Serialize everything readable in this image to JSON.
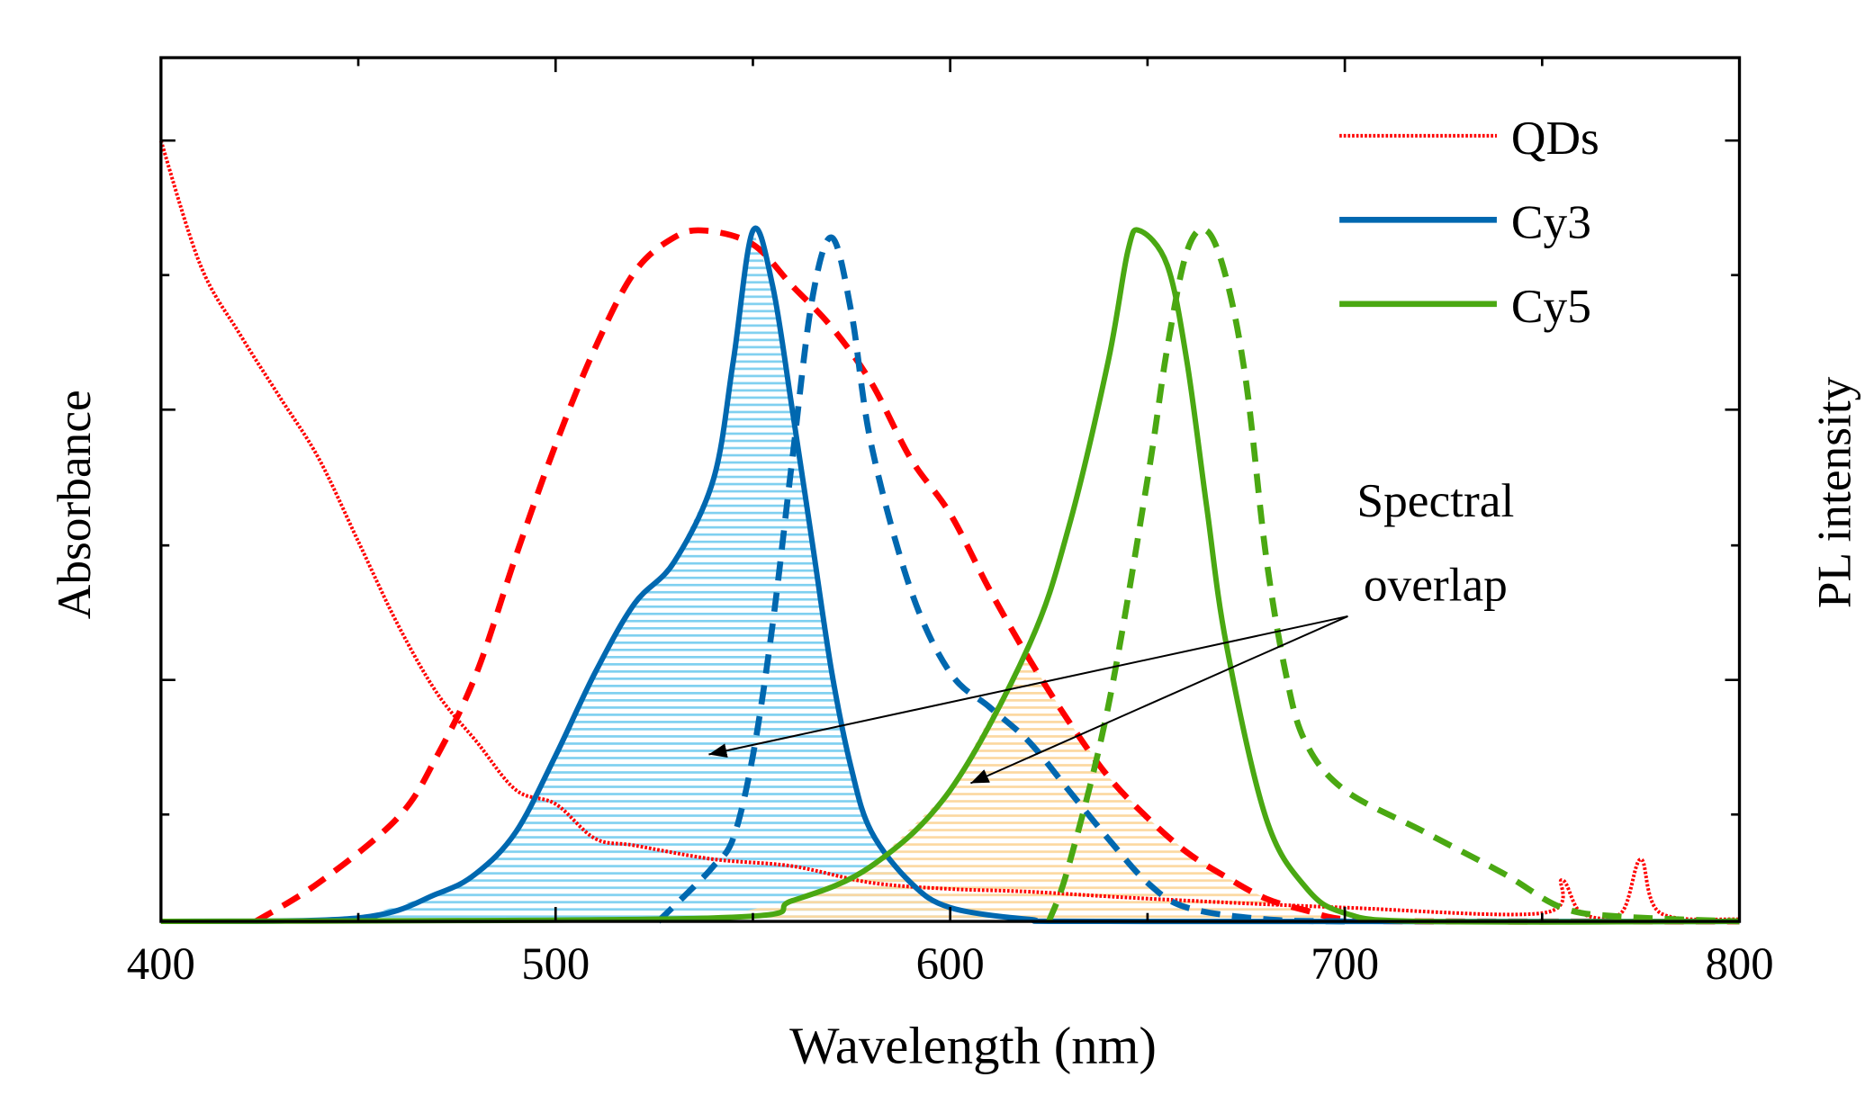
{
  "chart_data": {
    "type": "line",
    "xlabel": "Wavelength (nm)",
    "ylabel_left": "Absorbance",
    "ylabel_right": "PL intensity",
    "xlim": [
      400,
      800
    ],
    "ylim": [
      0,
      1.3
    ],
    "xticks": [
      400,
      500,
      600,
      700,
      800
    ],
    "xtick_labels": [
      "400",
      "500",
      "600",
      "700",
      "800"
    ],
    "grid": false,
    "legend_placement": "top-right",
    "legend": [
      {
        "label": "QDs",
        "color": "#ff0000",
        "style": "dotted"
      },
      {
        "label": "Cy3",
        "color": "#0068b0",
        "style": "solid"
      },
      {
        "label": "Cy5",
        "color": "#4aa812",
        "style": "solid"
      }
    ],
    "annotation": {
      "line1": "Spectral",
      "line2": "overlap"
    },
    "series": [
      {
        "name": "QDs absorbance",
        "color": "#ff0000",
        "style": "dotted",
        "x": [
          400,
          410,
          420,
          430,
          440,
          450,
          460,
          470,
          480,
          490,
          500,
          510,
          520,
          540,
          560,
          580,
          600,
          620,
          650,
          700,
          750,
          755,
          760,
          770,
          775,
          780,
          800
        ],
        "y": [
          1.13,
          0.95,
          0.85,
          0.76,
          0.67,
          0.55,
          0.43,
          0.33,
          0.26,
          0.19,
          0.17,
          0.12,
          0.11,
          0.09,
          0.08,
          0.056,
          0.047,
          0.043,
          0.033,
          0.02,
          0.012,
          0.06,
          0.012,
          0.012,
          0.09,
          0.012,
          0.003
        ]
      },
      {
        "name": "QDs emission",
        "color": "#ff0000",
        "style": "dashed",
        "x": [
          424,
          440,
          460,
          470,
          480,
          490,
          500,
          510,
          520,
          530,
          538,
          550,
          560,
          570,
          580,
          590,
          600,
          610,
          620,
          630,
          640,
          650,
          660,
          670,
          680,
          690,
          700,
          720,
          800
        ],
        "y": [
          0,
          0.056,
          0.15,
          0.24,
          0.36,
          0.53,
          0.69,
          0.83,
          0.94,
          0.99,
          1.0,
          0.98,
          0.92,
          0.86,
          0.78,
          0.67,
          0.59,
          0.48,
          0.38,
          0.29,
          0.21,
          0.15,
          0.1,
          0.064,
          0.033,
          0.016,
          0.003,
          0,
          0
        ]
      },
      {
        "name": "Cy3 absorption",
        "color": "#0068b0",
        "style": "solid",
        "x": [
          400,
          450,
          470,
          480,
          490,
          500,
          510,
          520,
          530,
          540,
          545,
          550,
          555,
          560,
          565,
          570,
          575,
          580,
          590,
          600,
          620,
          640,
          800
        ],
        "y": [
          0,
          0.005,
          0.04,
          0.07,
          0.13,
          0.24,
          0.36,
          0.46,
          0.52,
          0.64,
          0.81,
          1.0,
          0.92,
          0.74,
          0.55,
          0.36,
          0.22,
          0.13,
          0.056,
          0.02,
          0.003,
          0,
          0
        ]
      },
      {
        "name": "Cy3 emission",
        "color": "#0068b0",
        "style": "dashed",
        "x": [
          526,
          535,
          540,
          545,
          550,
          555,
          560,
          565,
          570,
          575,
          580,
          590,
          600,
          610,
          620,
          630,
          640,
          650,
          660,
          680,
          700
        ],
        "y": [
          0,
          0.05,
          0.08,
          0.12,
          0.24,
          0.43,
          0.67,
          0.9,
          0.99,
          0.88,
          0.69,
          0.48,
          0.36,
          0.31,
          0.26,
          0.19,
          0.12,
          0.056,
          0.02,
          0.003,
          0
        ]
      },
      {
        "name": "Cy5 absorption",
        "color": "#4aa812",
        "style": "solid",
        "x": [
          400,
          540,
          560,
          580,
          600,
          620,
          630,
          640,
          645,
          648,
          655,
          660,
          665,
          670,
          680,
          690,
          700,
          720,
          800
        ],
        "y": [
          0,
          0.005,
          0.03,
          0.08,
          0.19,
          0.4,
          0.57,
          0.81,
          0.97,
          1.0,
          0.95,
          0.81,
          0.6,
          0.4,
          0.15,
          0.05,
          0.012,
          0,
          0
        ]
      },
      {
        "name": "Cy5 emission",
        "color": "#4aa812",
        "style": "dashed",
        "x": [
          625,
          630,
          640,
          650,
          655,
          660,
          665,
          670,
          675,
          680,
          685,
          690,
          700,
          720,
          740,
          755,
          770,
          800
        ],
        "y": [
          0,
          0.08,
          0.31,
          0.64,
          0.83,
          0.97,
          1.0,
          0.93,
          0.78,
          0.53,
          0.36,
          0.26,
          0.19,
          0.13,
          0.07,
          0.02,
          0.007,
          0
        ]
      }
    ]
  }
}
